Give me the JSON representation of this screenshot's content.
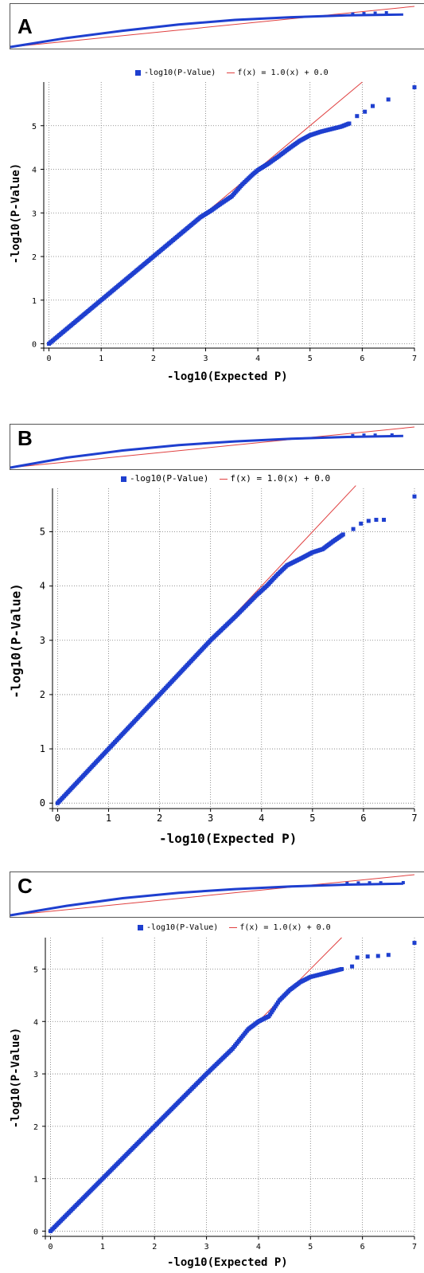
{
  "chart_data": [
    {
      "type": "scatter",
      "panel_label": "A",
      "legend_observed": "-log10(P-Value)",
      "legend_fit": "f(x) = 1.0(x) + 0.0",
      "xlabel": "-log10(Expected P)",
      "ylabel": "-log10(P-Value)",
      "xlim": [
        -0.1,
        7
      ],
      "ylim": [
        -0.1,
        6
      ],
      "x_ticks": [
        0,
        1,
        2,
        3,
        4,
        5,
        6,
        7
      ],
      "y_ticks": [
        0,
        1,
        2,
        3,
        4,
        5
      ],
      "grid": true,
      "legend_position": "top",
      "fit_line": {
        "slope": 1.0,
        "intercept": 0.0,
        "x_max": 6.0
      },
      "series": [
        {
          "name": "-log10(P-Value)",
          "color": "#1e3fcf",
          "points": [
            [
              0,
              0
            ],
            [
              0.3,
              0.3
            ],
            [
              0.6,
              0.6
            ],
            [
              1,
              1
            ],
            [
              1.5,
              1.5
            ],
            [
              2,
              2
            ],
            [
              2.5,
              2.5
            ],
            [
              2.9,
              2.9
            ],
            [
              3.1,
              3.05
            ],
            [
              3.3,
              3.22
            ],
            [
              3.5,
              3.38
            ],
            [
              3.7,
              3.65
            ],
            [
              3.9,
              3.88
            ],
            [
              4,
              3.98
            ],
            [
              4.2,
              4.13
            ],
            [
              4.4,
              4.3
            ],
            [
              4.6,
              4.48
            ],
            [
              4.8,
              4.65
            ],
            [
              5,
              4.78
            ],
            [
              5.2,
              4.86
            ],
            [
              5.4,
              4.92
            ],
            [
              5.6,
              4.98
            ],
            [
              5.75,
              5.05
            ],
            [
              5.9,
              5.22
            ],
            [
              6.05,
              5.32
            ],
            [
              6.2,
              5.45
            ],
            [
              6.5,
              5.6
            ],
            [
              7,
              5.88
            ]
          ]
        }
      ],
      "strip_points": [
        [
          0,
          0
        ],
        [
          1,
          1
        ],
        [
          2,
          1.8
        ],
        [
          3,
          2.5
        ],
        [
          4,
          3.0
        ],
        [
          5,
          3.3
        ],
        [
          6,
          3.5
        ],
        [
          6.5,
          3.55
        ],
        [
          7,
          3.6
        ]
      ],
      "strip_markers": [
        [
          6.1,
          3.65
        ],
        [
          6.3,
          3.7
        ],
        [
          6.5,
          3.75
        ],
        [
          6.7,
          3.8
        ]
      ]
    },
    {
      "type": "scatter",
      "panel_label": "B",
      "legend_observed": "-log10(P-Value)",
      "legend_fit": "f(x) = 1.0(x) + 0.0",
      "xlabel": "-log10(Expected P)",
      "ylabel": "-log10(P-Value)",
      "xlim": [
        -0.1,
        7
      ],
      "ylim": [
        -0.1,
        5.8
      ],
      "x_ticks": [
        0,
        1,
        2,
        3,
        4,
        5,
        6,
        7
      ],
      "y_ticks": [
        0,
        1,
        2,
        3,
        4,
        5
      ],
      "grid": true,
      "legend_position": "top",
      "fit_line": {
        "slope": 1.0,
        "intercept": 0.0,
        "x_max": 5.85
      },
      "series": [
        {
          "name": "-log10(P-Value)",
          "color": "#1e3fcf",
          "points": [
            [
              0,
              0
            ],
            [
              0.5,
              0.5
            ],
            [
              1,
              1
            ],
            [
              1.5,
              1.5
            ],
            [
              2,
              2
            ],
            [
              2.5,
              2.5
            ],
            [
              3,
              3
            ],
            [
              3.5,
              3.45
            ],
            [
              3.9,
              3.83
            ],
            [
              4.1,
              4.0
            ],
            [
              4.3,
              4.2
            ],
            [
              4.5,
              4.38
            ],
            [
              4.8,
              4.52
            ],
            [
              5.0,
              4.62
            ],
            [
              5.2,
              4.68
            ],
            [
              5.4,
              4.82
            ],
            [
              5.6,
              4.95
            ],
            [
              5.8,
              5.05
            ],
            [
              5.95,
              5.15
            ],
            [
              6.1,
              5.2
            ],
            [
              6.25,
              5.22
            ],
            [
              6.4,
              5.22
            ],
            [
              7,
              5.65
            ]
          ]
        }
      ],
      "strip_points": [
        [
          0,
          0
        ],
        [
          1,
          1.1
        ],
        [
          2,
          1.9
        ],
        [
          3,
          2.5
        ],
        [
          4,
          2.9
        ],
        [
          5,
          3.2
        ],
        [
          6,
          3.4
        ],
        [
          6.5,
          3.45
        ],
        [
          7,
          3.5
        ]
      ],
      "strip_markers": [
        [
          6.1,
          3.55
        ],
        [
          6.3,
          3.6
        ],
        [
          6.5,
          3.6
        ],
        [
          6.8,
          3.62
        ]
      ]
    },
    {
      "type": "scatter",
      "panel_label": "C",
      "legend_observed": "-log10(P-Value)",
      "legend_fit": "f(x) = 1.0(x) + 0.0",
      "xlabel": "-log10(Expected P)",
      "ylabel": "-log10(P-Value)",
      "xlim": [
        -0.1,
        7
      ],
      "ylim": [
        -0.1,
        5.6
      ],
      "x_ticks": [
        0,
        1,
        2,
        3,
        4,
        5,
        6,
        7
      ],
      "y_ticks": [
        0,
        1,
        2,
        3,
        4,
        5
      ],
      "grid": true,
      "legend_position": "top",
      "fit_line": {
        "slope": 1.0,
        "intercept": 0.0,
        "x_max": 5.6
      },
      "series": [
        {
          "name": "-log10(P-Value)",
          "color": "#1e3fcf",
          "points": [
            [
              0,
              0
            ],
            [
              0.5,
              0.5
            ],
            [
              1,
              1
            ],
            [
              1.5,
              1.5
            ],
            [
              2,
              2
            ],
            [
              2.5,
              2.5
            ],
            [
              3,
              3
            ],
            [
              3.5,
              3.48
            ],
            [
              3.8,
              3.85
            ],
            [
              4.0,
              4.0
            ],
            [
              4.2,
              4.1
            ],
            [
              4.4,
              4.4
            ],
            [
              4.6,
              4.6
            ],
            [
              4.8,
              4.75
            ],
            [
              5.0,
              4.85
            ],
            [
              5.2,
              4.9
            ],
            [
              5.4,
              4.95
            ],
            [
              5.6,
              5.0
            ],
            [
              5.8,
              5.05
            ],
            [
              5.9,
              5.22
            ],
            [
              6.1,
              5.24
            ],
            [
              6.3,
              5.25
            ],
            [
              6.5,
              5.27
            ],
            [
              7,
              5.5
            ]
          ]
        }
      ],
      "strip_points": [
        [
          0,
          0
        ],
        [
          1,
          1.05
        ],
        [
          2,
          1.9
        ],
        [
          3,
          2.5
        ],
        [
          4,
          2.9
        ],
        [
          5,
          3.2
        ],
        [
          6,
          3.4
        ],
        [
          6.5,
          3.45
        ],
        [
          7,
          3.5
        ]
      ],
      "strip_markers": [
        [
          6.0,
          3.55
        ],
        [
          6.2,
          3.58
        ],
        [
          6.4,
          3.6
        ],
        [
          6.6,
          3.6
        ],
        [
          7.0,
          3.62
        ]
      ]
    }
  ]
}
